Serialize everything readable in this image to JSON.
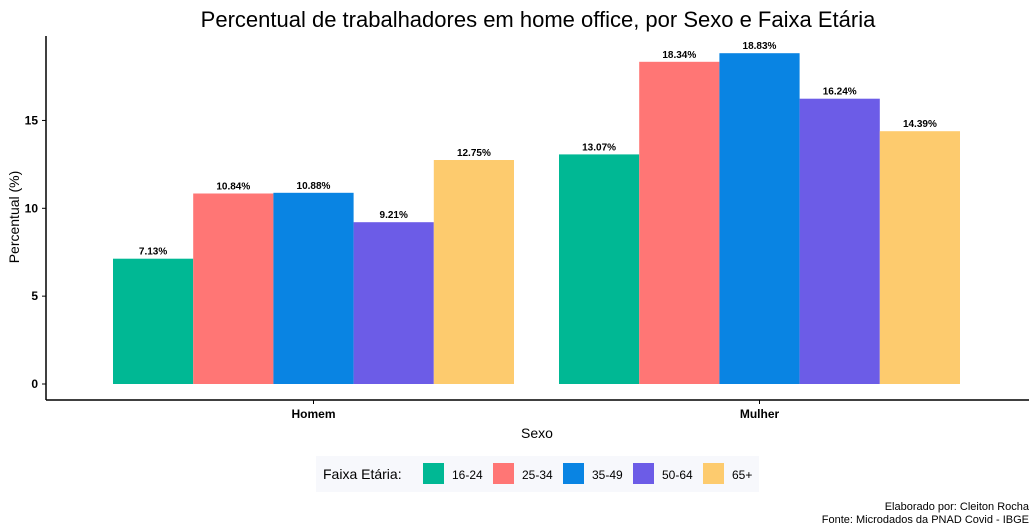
{
  "chart_data": {
    "type": "bar",
    "title": "Percentual de trabalhadores em home office, por Sexo e Faixa Etária",
    "xlabel": "Sexo",
    "ylabel": "Percentual (%)",
    "categories": [
      "Homem",
      "Mulher"
    ],
    "ylim": [
      0,
      19.5
    ],
    "yticks": [
      0,
      5,
      10,
      15
    ],
    "grid": false,
    "legend": {
      "title": "Faixa Etária:",
      "position": "bottom"
    },
    "series": [
      {
        "name": "16-24",
        "values": [
          7.13,
          13.07
        ],
        "labels": [
          "7.13%",
          "13.07%"
        ],
        "color": "#00B894"
      },
      {
        "name": "25-34",
        "values": [
          10.84,
          18.34
        ],
        "labels": [
          "10.84%",
          "18.34%"
        ],
        "color": "#FF7675"
      },
      {
        "name": "35-49",
        "values": [
          10.88,
          18.83
        ],
        "labels": [
          "10.88%",
          "18.83%"
        ],
        "color": "#0984E3"
      },
      {
        "name": "50-64",
        "values": [
          9.21,
          16.24
        ],
        "labels": [
          "9.21%",
          "16.24%"
        ],
        "color": "#6C5CE7"
      },
      {
        "name": "65+",
        "values": [
          12.75,
          14.39
        ],
        "labels": [
          "12.75%",
          "14.39%"
        ],
        "color": "#FDCB6E"
      }
    ],
    "caption": [
      "Elaborado por: Cleiton Rocha",
      "Fonte: Microdados da PNAD Covid - IBGE"
    ]
  }
}
